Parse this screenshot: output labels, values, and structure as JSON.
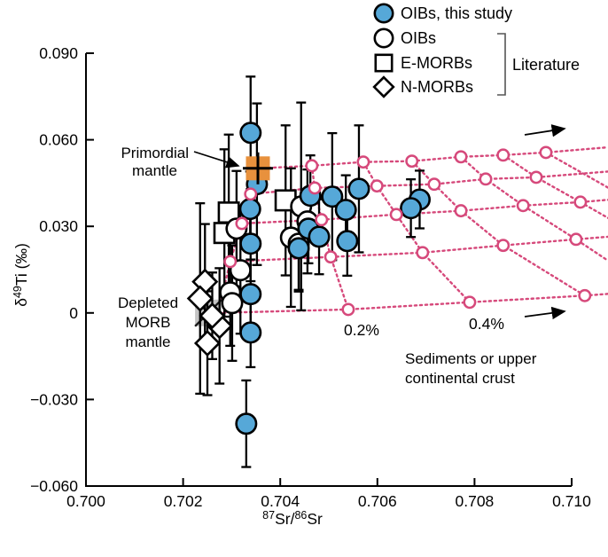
{
  "figure_title": "Ti isotope vs Sr isotope mixing diagram",
  "chart_data": {
    "type": "scatter",
    "xlabel_parts": [
      {
        "t": "87",
        "sup": true
      },
      {
        "t": "Sr/"
      },
      {
        "t": "86",
        "sup": true
      },
      {
        "t": "Sr"
      }
    ],
    "ylabel_parts": [
      {
        "t": "δ"
      },
      {
        "t": "49",
        "sup": true
      },
      {
        "t": "Ti (‰)"
      }
    ],
    "xlim": [
      0.7,
      0.71
    ],
    "ylim": [
      -0.06,
      0.09
    ],
    "xticks": [
      {
        "v": 0.7,
        "label": "0.700"
      },
      {
        "v": 0.702,
        "label": "0.702"
      },
      {
        "v": 0.704,
        "label": "0.704"
      },
      {
        "v": 0.706,
        "label": "0.706"
      },
      {
        "v": 0.708,
        "label": "0.708"
      },
      {
        "v": 0.71,
        "label": "0.710"
      }
    ],
    "yticks": [
      {
        "v": 0.09,
        "label": "0.090"
      },
      {
        "v": 0.06,
        "label": "0.060"
      },
      {
        "v": 0.03,
        "label": "0.030"
      },
      {
        "v": 0.0,
        "label": "0"
      },
      {
        "v": -0.03,
        "label": "−0.030"
      },
      {
        "v": -0.06,
        "label": "−0.060"
      }
    ],
    "grid_on": false,
    "legend_position": "top-right",
    "colors": {
      "oib_this_study_fill": "#56A8D8",
      "literature_fill": "#FFFFFF",
      "marker_stroke": "#000000",
      "mixing_grid": "#D6497B",
      "primordial_mantle": "#E8913D",
      "depleted_morb_mantle": "#C4C4C4"
    },
    "series": [
      {
        "name": "OIBs, this study",
        "marker": "circle",
        "fill": "#56A8D8",
        "points": [
          [
            0.70339,
            0.0624,
            0.0195
          ],
          [
            0.70352,
            0.0446,
            0.028
          ],
          [
            0.70338,
            0.036,
            0.013
          ],
          [
            0.70339,
            0.024,
            0.013
          ],
          [
            0.70339,
            0.0065,
            0.012
          ],
          [
            0.70339,
            -0.0068,
            0.012
          ],
          [
            0.7033,
            -0.0384,
            0.015
          ],
          [
            0.70462,
            0.0406,
            0.014
          ],
          [
            0.70507,
            0.0403,
            0.022
          ],
          [
            0.70562,
            0.043,
            0.022
          ],
          [
            0.70535,
            0.0357,
            0.012
          ],
          [
            0.70458,
            0.0292,
            0.012
          ],
          [
            0.7048,
            0.0264,
            0.013
          ],
          [
            0.70438,
            0.0224,
            0.015
          ],
          [
            0.70538,
            0.0249,
            0.012
          ],
          [
            0.70687,
            0.0393,
            0.01
          ],
          [
            0.70669,
            0.0363,
            0.01
          ]
        ]
      },
      {
        "name": "OIBs",
        "marker": "circle",
        "fill": "#FFFFFF",
        "points": [
          [
            0.70443,
            0.0369,
            0.036
          ],
          [
            0.70456,
            0.0317,
            0.018
          ],
          [
            0.70422,
            0.0261,
            0.024
          ],
          [
            0.7031,
            0.0292,
            0.02
          ],
          [
            0.70318,
            0.0148,
            0.022
          ],
          [
            0.70297,
            0.0071,
            0.0185
          ],
          [
            0.70301,
            0.0034,
            0.02
          ],
          [
            0.70438,
            0.024,
            0.016
          ]
        ]
      },
      {
        "name": "E-MORBs",
        "marker": "square",
        "fill": "#FFFFFF",
        "points": [
          [
            0.70294,
            0.0348,
            0.027
          ],
          [
            0.70285,
            0.0277,
            0.029
          ],
          [
            0.70411,
            0.039,
            0.026
          ]
        ]
      },
      {
        "name": "N-MORBs",
        "marker": "diamond",
        "fill": "#FFFFFF",
        "points": [
          [
            0.70245,
            0.0108,
            0.02
          ],
          [
            0.70235,
            0.005,
            0.033
          ],
          [
            0.70275,
            -0.0045,
            0.02
          ],
          [
            0.7025,
            -0.0105,
            0.018
          ],
          [
            0.7026,
            -0.001,
            0.015
          ]
        ]
      }
    ],
    "reference_points": [
      {
        "name": "Primordial mantle",
        "x": 0.70354,
        "y": 0.0501,
        "marker": "orange-square-cross",
        "color": "#E8913D"
      },
      {
        "name": "Depleted MORB mantle",
        "x": 0.70252,
        "y": 0.0,
        "marker": "gray-square-x",
        "color": "#C4C4C4"
      }
    ],
    "mixing_grid": {
      "color": "#D6497B",
      "node_marker": "open-circle",
      "curves": [
        {
          "points": [
            [
              0.70354,
              0.0501
            ],
            [
              0.70465,
              0.051
            ],
            [
              0.70571,
              0.0523
            ],
            [
              0.70671,
              0.0526
            ],
            [
              0.70772,
              0.0541
            ],
            [
              0.70859,
              0.0547
            ],
            [
              0.70947,
              0.0556
            ],
            [
              0.71075,
              0.0574
            ]
          ],
          "node_indices": [
            1,
            2,
            3,
            4,
            5,
            6
          ]
        },
        {
          "points": [
            [
              0.70339,
              0.0412
            ],
            [
              0.70471,
              0.0433
            ],
            [
              0.70599,
              0.044
            ],
            [
              0.70717,
              0.0446
            ],
            [
              0.70823,
              0.0464
            ],
            [
              0.70927,
              0.047
            ],
            [
              0.71075,
              0.049
            ]
          ],
          "node_indices": [
            0,
            1,
            2,
            3,
            4,
            5
          ]
        },
        {
          "points": [
            [
              0.70321,
              0.031
            ],
            [
              0.70485,
              0.0323
            ],
            [
              0.70639,
              0.0341
            ],
            [
              0.70772,
              0.0354
            ],
            [
              0.709,
              0.0372
            ],
            [
              0.71018,
              0.0384
            ],
            [
              0.71075,
              0.0392
            ]
          ],
          "node_indices": [
            0,
            1,
            2,
            3,
            4,
            5
          ]
        },
        {
          "points": [
            [
              0.70297,
              0.0178
            ],
            [
              0.70504,
              0.0194
            ],
            [
              0.70693,
              0.0209
            ],
            [
              0.70859,
              0.0234
            ],
            [
              0.71009,
              0.0255
            ],
            [
              0.71075,
              0.0264
            ]
          ],
          "node_indices": [
            0,
            1,
            2,
            3,
            4
          ]
        },
        {
          "points": [
            [
              0.70272,
              0.0
            ],
            [
              0.7054,
              0.0012
            ],
            [
              0.7079,
              0.0037
            ],
            [
              0.71027,
              0.006
            ],
            [
              0.71075,
              0.0066
            ]
          ],
          "node_indices": [
            1,
            2,
            3
          ]
        }
      ],
      "cross_links": [
        [
          [
            0.70354,
            0.0501
          ],
          [
            0.70339,
            0.0412
          ],
          [
            0.70321,
            0.031
          ],
          [
            0.70297,
            0.0178
          ],
          [
            0.70272,
            0.0
          ]
        ],
        [
          [
            0.70465,
            0.051
          ],
          [
            0.70471,
            0.0433
          ],
          [
            0.70485,
            0.0323
          ],
          [
            0.70504,
            0.0194
          ],
          [
            0.7054,
            0.0012
          ]
        ],
        [
          [
            0.70571,
            0.0523
          ],
          [
            0.70599,
            0.044
          ],
          [
            0.70639,
            0.0341
          ],
          [
            0.70693,
            0.0209
          ],
          [
            0.7079,
            0.0037
          ]
        ],
        [
          [
            0.70671,
            0.0526
          ],
          [
            0.70717,
            0.0446
          ],
          [
            0.70772,
            0.0354
          ],
          [
            0.70859,
            0.0234
          ],
          [
            0.71027,
            0.006
          ]
        ],
        [
          [
            0.70772,
            0.0541
          ],
          [
            0.70823,
            0.0464
          ],
          [
            0.709,
            0.0372
          ],
          [
            0.71009,
            0.0255
          ],
          [
            0.71075,
            0.0181
          ]
        ],
        [
          [
            0.70859,
            0.0547
          ],
          [
            0.70927,
            0.047
          ],
          [
            0.71018,
            0.0384
          ],
          [
            0.71075,
            0.0329
          ]
        ],
        [
          [
            0.70947,
            0.0556
          ],
          [
            0.71027,
            0.048
          ],
          [
            0.71075,
            0.0434
          ]
        ]
      ],
      "percent_labels": [
        {
          "text": "0.2%"
        },
        {
          "text": "0.4%"
        }
      ]
    },
    "annotations": [
      {
        "id": "primordial",
        "lines": [
          "Primordial",
          "mantle"
        ]
      },
      {
        "id": "depleted",
        "lines": [
          "Depleted",
          "MORB",
          "mantle"
        ]
      },
      {
        "id": "sediments",
        "lines": [
          "Sediments or upper",
          "continental crust"
        ]
      }
    ],
    "legend": {
      "items": [
        {
          "label": "OIBs, this study",
          "marker": "circle",
          "fill": "#56A8D8"
        },
        {
          "label": "OIBs",
          "marker": "circle",
          "fill": "#FFFFFF"
        },
        {
          "label": "E-MORBs",
          "marker": "square",
          "fill": "#FFFFFF"
        },
        {
          "label": "N-MORBs",
          "marker": "diamond",
          "fill": "#FFFFFF"
        }
      ],
      "group_label": "Literature"
    }
  }
}
